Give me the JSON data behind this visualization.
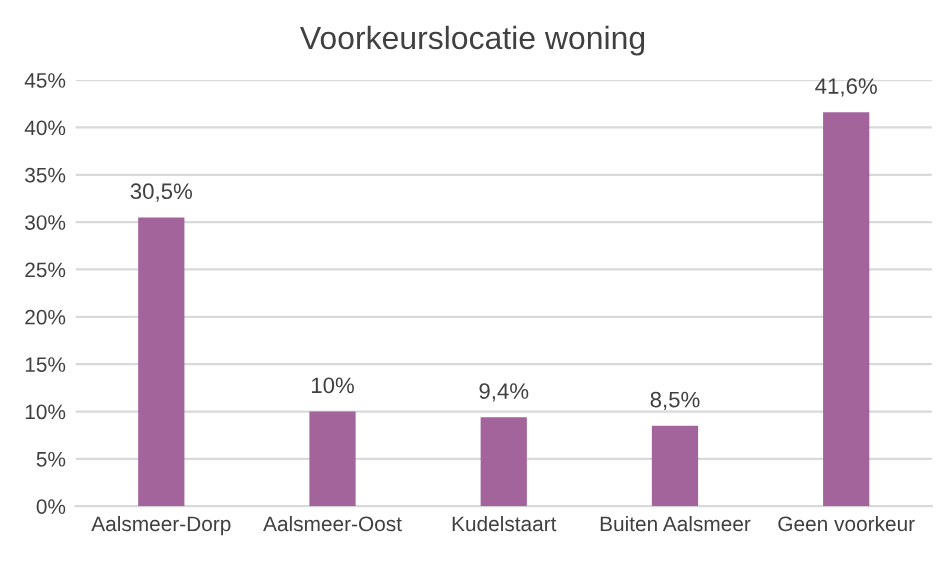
{
  "chart_data": {
    "type": "bar",
    "title": "Voorkeurslocatie woning",
    "categories": [
      "Aalsmeer-Dorp",
      "Aalsmeer-Oost",
      "Kudelstaart",
      "Buiten Aalsmeer",
      "Geen voorkeur"
    ],
    "values": [
      30.5,
      10,
      9.4,
      8.5,
      41.6
    ],
    "value_labels": [
      "30,5%",
      "10%",
      "9,4%",
      "8,5%",
      "41,6%"
    ],
    "color": "#a2649b",
    "ylim": [
      0,
      45
    ],
    "yticks": [
      {
        "value": 0,
        "label": "0%"
      },
      {
        "value": 5,
        "label": "5%"
      },
      {
        "value": 10,
        "label": "10%"
      },
      {
        "value": 15,
        "label": "15%"
      },
      {
        "value": 20,
        "label": "20%"
      },
      {
        "value": 25,
        "label": "25%"
      },
      {
        "value": 30,
        "label": "30%"
      },
      {
        "value": 35,
        "label": "35%"
      },
      {
        "value": 40,
        "label": "40%"
      },
      {
        "value": 45,
        "label": "45%"
      }
    ],
    "grid": "y",
    "legend": false
  }
}
